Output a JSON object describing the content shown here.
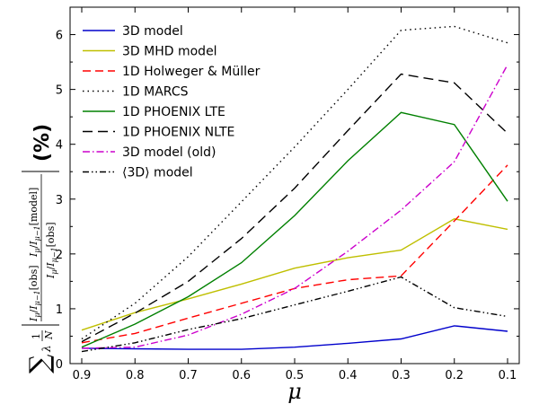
{
  "chart_data": {
    "type": "line",
    "x": [
      0.9,
      0.8,
      0.7,
      0.6,
      0.5,
      0.4,
      0.3,
      0.2,
      0.1
    ],
    "xlabel": "μ",
    "ylabel_parts": {
      "sum": "∑",
      "lambda": "λ",
      "frac_num": "1",
      "frac_den": "N",
      "ratio_obs_num": "I",
      "ratio_obs_num_sub": "μ",
      "ratio_obs_den": "I",
      "ratio_obs_den_sub": "μ−1",
      "ratio_obs_tag": "[obs]",
      "ratio_model_tag": "[model]",
      "unit": "(%)"
    },
    "xlim": [
      0.9,
      0.1
    ],
    "ylim": [
      0,
      6.5
    ],
    "xticks": [
      0.9,
      0.8,
      0.7,
      0.6,
      0.5,
      0.4,
      0.3,
      0.2,
      0.1
    ],
    "yticks": [
      0,
      1,
      2,
      3,
      4,
      5,
      6
    ],
    "grid": false,
    "legend": "top-left",
    "series": [
      {
        "name": "3D model",
        "color": "#0000cc",
        "dash": "solid",
        "values": [
          0.28,
          0.27,
          0.26,
          0.26,
          0.3,
          0.37,
          0.45,
          0.69,
          0.59
        ]
      },
      {
        "name": "3D MHD model",
        "color": "#bfbf00",
        "dash": "solid",
        "values": [
          0.61,
          0.93,
          1.18,
          1.45,
          1.74,
          1.93,
          2.07,
          2.64,
          2.45
        ]
      },
      {
        "name": "1D Holweger & Müller",
        "color": "#ff0000",
        "dash": "dashed",
        "values": [
          0.38,
          0.55,
          0.83,
          1.1,
          1.37,
          1.53,
          1.6,
          2.6,
          3.62
        ]
      },
      {
        "name": "1D MARCS",
        "color": "#000000",
        "dash": "dotted",
        "values": [
          0.45,
          1.1,
          1.95,
          2.95,
          3.95,
          5.0,
          6.08,
          6.15,
          5.85
        ]
      },
      {
        "name": "1D PHOENIX LTE",
        "color": "#008000",
        "dash": "solid",
        "values": [
          0.3,
          0.72,
          1.22,
          1.84,
          2.7,
          3.7,
          4.58,
          4.36,
          2.96
        ]
      },
      {
        "name": "1D PHOENIX NLTE",
        "color": "#000000",
        "dash": "longdash",
        "values": [
          0.4,
          0.92,
          1.5,
          2.28,
          3.2,
          4.25,
          5.28,
          5.12,
          4.2
        ]
      },
      {
        "name": "3D model (old)",
        "color": "#cc00cc",
        "dash": "dashdot",
        "values": [
          0.28,
          0.3,
          0.52,
          0.9,
          1.37,
          2.05,
          2.8,
          3.68,
          5.45
        ]
      },
      {
        "name": "⟨3D⟩ model",
        "color": "#000000",
        "dash": "dashdotdot",
        "values": [
          0.22,
          0.38,
          0.62,
          0.82,
          1.07,
          1.32,
          1.58,
          1.02,
          0.86
        ]
      }
    ]
  }
}
